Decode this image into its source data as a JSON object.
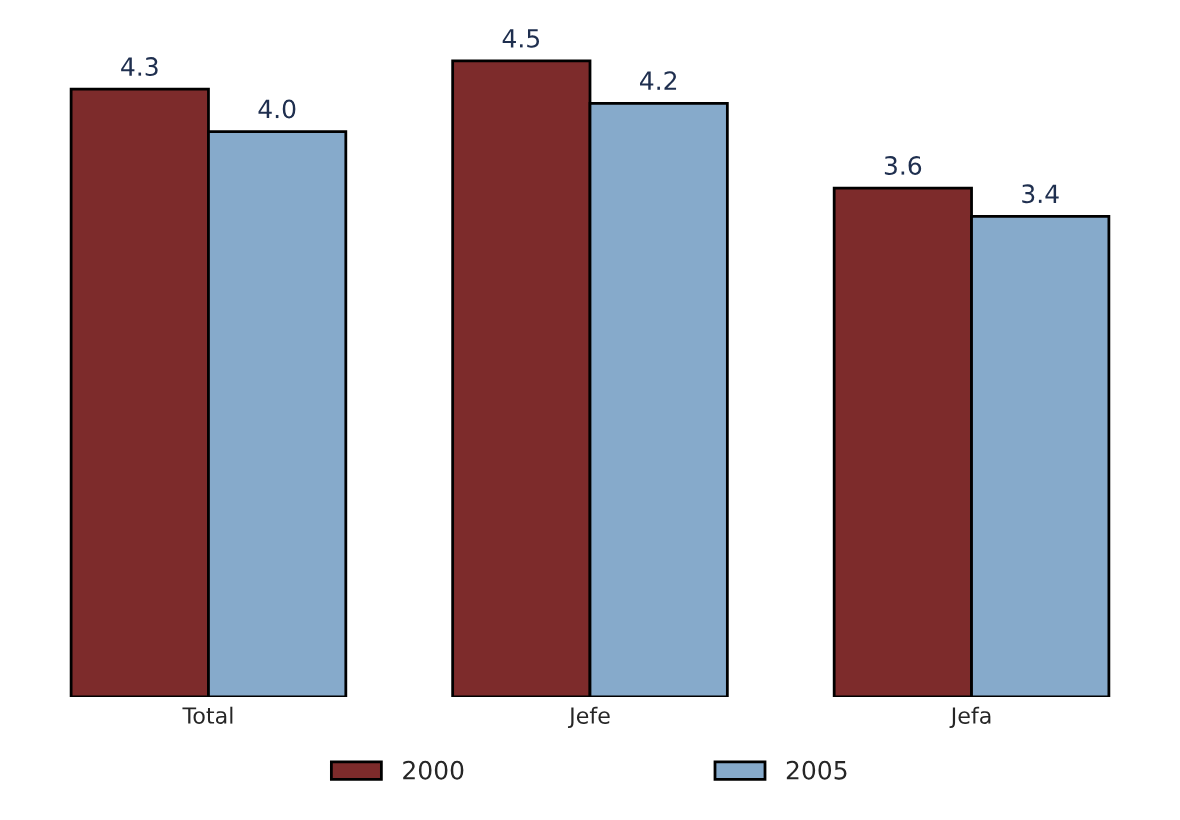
{
  "chart_data": {
    "type": "bar",
    "categories": [
      "Total",
      "Jefe",
      "Jefa"
    ],
    "series": [
      {
        "name": "2000",
        "color": "#7d2b2b",
        "values": [
          4.3,
          4.5,
          3.6
        ],
        "value_labels": [
          "4.3",
          "4.5",
          "3.6"
        ]
      },
      {
        "name": "2005",
        "color": "#86aacb",
        "values": [
          4.0,
          4.2,
          3.4
        ],
        "value_labels": [
          "4.0",
          "4.2",
          "3.4"
        ]
      }
    ],
    "legend": "bottom",
    "grid": false
  }
}
